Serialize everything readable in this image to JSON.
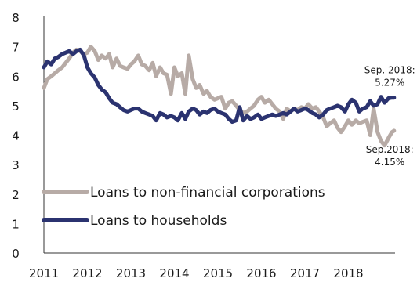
{
  "chart_data": {
    "type": "line",
    "x_axis": {
      "ticks": [
        "2011",
        "2012",
        "2013",
        "2014",
        "2015",
        "2016",
        "2017",
        "2018"
      ],
      "range": [
        2011,
        2019
      ]
    },
    "y_axis": {
      "ticks": [
        "0",
        "1",
        "2",
        "3",
        "4",
        "5",
        "6",
        "7",
        "8"
      ],
      "range": [
        0,
        8
      ]
    },
    "grid": false,
    "legend": {
      "placement": "bottom-left"
    },
    "series": [
      {
        "name": "Loans to non-financial corporations",
        "color": "#b7aba6",
        "points": [
          [
            2011.0,
            5.6
          ],
          [
            2011.08,
            5.9
          ],
          [
            2011.17,
            6.0
          ],
          [
            2011.25,
            6.1
          ],
          [
            2011.33,
            6.2
          ],
          [
            2011.42,
            6.3
          ],
          [
            2011.5,
            6.45
          ],
          [
            2011.58,
            6.6
          ],
          [
            2011.67,
            6.8
          ],
          [
            2011.75,
            6.9
          ],
          [
            2011.83,
            6.85
          ],
          [
            2011.92,
            6.75
          ],
          [
            2012.0,
            6.8
          ],
          [
            2012.08,
            7.0
          ],
          [
            2012.17,
            6.85
          ],
          [
            2012.25,
            6.55
          ],
          [
            2012.33,
            6.7
          ],
          [
            2012.42,
            6.6
          ],
          [
            2012.5,
            6.75
          ],
          [
            2012.58,
            6.3
          ],
          [
            2012.67,
            6.6
          ],
          [
            2012.75,
            6.35
          ],
          [
            2012.83,
            6.3
          ],
          [
            2012.92,
            6.25
          ],
          [
            2013.0,
            6.4
          ],
          [
            2013.08,
            6.5
          ],
          [
            2013.17,
            6.7
          ],
          [
            2013.25,
            6.4
          ],
          [
            2013.33,
            6.35
          ],
          [
            2013.42,
            6.2
          ],
          [
            2013.5,
            6.45
          ],
          [
            2013.58,
            6.0
          ],
          [
            2013.67,
            6.3
          ],
          [
            2013.75,
            6.1
          ],
          [
            2013.83,
            6.05
          ],
          [
            2013.92,
            5.4
          ],
          [
            2014.0,
            6.3
          ],
          [
            2014.08,
            6.0
          ],
          [
            2014.17,
            6.1
          ],
          [
            2014.25,
            5.4
          ],
          [
            2014.33,
            6.7
          ],
          [
            2014.42,
            5.9
          ],
          [
            2014.5,
            5.6
          ],
          [
            2014.58,
            5.7
          ],
          [
            2014.67,
            5.4
          ],
          [
            2014.75,
            5.5
          ],
          [
            2014.83,
            5.3
          ],
          [
            2014.92,
            5.2
          ],
          [
            2015.0,
            5.25
          ],
          [
            2015.08,
            5.3
          ],
          [
            2015.17,
            4.9
          ],
          [
            2015.25,
            5.1
          ],
          [
            2015.33,
            5.15
          ],
          [
            2015.42,
            5.0
          ],
          [
            2015.5,
            4.85
          ],
          [
            2015.58,
            4.75
          ],
          [
            2015.67,
            4.8
          ],
          [
            2015.75,
            4.9
          ],
          [
            2015.83,
            5.0
          ],
          [
            2015.92,
            5.2
          ],
          [
            2016.0,
            5.3
          ],
          [
            2016.08,
            5.1
          ],
          [
            2016.17,
            5.2
          ],
          [
            2016.25,
            5.05
          ],
          [
            2016.33,
            4.9
          ],
          [
            2016.42,
            4.8
          ],
          [
            2016.5,
            4.55
          ],
          [
            2016.58,
            4.9
          ],
          [
            2016.67,
            4.8
          ],
          [
            2016.75,
            4.9
          ],
          [
            2016.83,
            4.85
          ],
          [
            2016.92,
            4.95
          ],
          [
            2017.0,
            4.9
          ],
          [
            2017.08,
            5.05
          ],
          [
            2017.17,
            4.9
          ],
          [
            2017.25,
            4.95
          ],
          [
            2017.33,
            4.8
          ],
          [
            2017.42,
            4.6
          ],
          [
            2017.5,
            4.3
          ],
          [
            2017.58,
            4.4
          ],
          [
            2017.67,
            4.5
          ],
          [
            2017.75,
            4.25
          ],
          [
            2017.83,
            4.1
          ],
          [
            2017.92,
            4.3
          ],
          [
            2018.0,
            4.5
          ],
          [
            2018.08,
            4.35
          ],
          [
            2018.17,
            4.5
          ],
          [
            2018.25,
            4.4
          ],
          [
            2018.33,
            4.45
          ],
          [
            2018.42,
            4.5
          ],
          [
            2018.5,
            4.0
          ],
          [
            2018.58,
            4.9
          ],
          [
            2018.67,
            4.1
          ],
          [
            2018.75,
            3.8
          ],
          [
            2018.83,
            3.65
          ],
          [
            2018.92,
            3.9
          ],
          [
            2019.0,
            4.1
          ],
          [
            2019.05,
            4.15
          ]
        ]
      },
      {
        "name": "Loans to households",
        "color": "#2b3370",
        "points": [
          [
            2011.0,
            6.3
          ],
          [
            2011.08,
            6.5
          ],
          [
            2011.17,
            6.4
          ],
          [
            2011.25,
            6.6
          ],
          [
            2011.33,
            6.65
          ],
          [
            2011.42,
            6.75
          ],
          [
            2011.5,
            6.8
          ],
          [
            2011.58,
            6.85
          ],
          [
            2011.67,
            6.75
          ],
          [
            2011.75,
            6.85
          ],
          [
            2011.83,
            6.9
          ],
          [
            2011.92,
            6.7
          ],
          [
            2012.0,
            6.3
          ],
          [
            2012.08,
            6.1
          ],
          [
            2012.17,
            5.95
          ],
          [
            2012.25,
            5.7
          ],
          [
            2012.33,
            5.55
          ],
          [
            2012.42,
            5.45
          ],
          [
            2012.5,
            5.25
          ],
          [
            2012.58,
            5.1
          ],
          [
            2012.67,
            5.05
          ],
          [
            2012.75,
            4.95
          ],
          [
            2012.83,
            4.85
          ],
          [
            2012.92,
            4.8
          ],
          [
            2013.0,
            4.85
          ],
          [
            2013.08,
            4.9
          ],
          [
            2013.17,
            4.9
          ],
          [
            2013.25,
            4.8
          ],
          [
            2013.33,
            4.75
          ],
          [
            2013.42,
            4.7
          ],
          [
            2013.5,
            4.65
          ],
          [
            2013.58,
            4.5
          ],
          [
            2013.67,
            4.75
          ],
          [
            2013.75,
            4.7
          ],
          [
            2013.83,
            4.6
          ],
          [
            2013.92,
            4.65
          ],
          [
            2014.0,
            4.6
          ],
          [
            2014.08,
            4.5
          ],
          [
            2014.17,
            4.75
          ],
          [
            2014.25,
            4.55
          ],
          [
            2014.33,
            4.8
          ],
          [
            2014.42,
            4.9
          ],
          [
            2014.5,
            4.85
          ],
          [
            2014.58,
            4.7
          ],
          [
            2014.67,
            4.8
          ],
          [
            2014.75,
            4.75
          ],
          [
            2014.83,
            4.85
          ],
          [
            2014.92,
            4.9
          ],
          [
            2015.0,
            4.8
          ],
          [
            2015.08,
            4.75
          ],
          [
            2015.17,
            4.7
          ],
          [
            2015.25,
            4.55
          ],
          [
            2015.33,
            4.45
          ],
          [
            2015.42,
            4.5
          ],
          [
            2015.5,
            4.95
          ],
          [
            2015.58,
            4.5
          ],
          [
            2015.67,
            4.65
          ],
          [
            2015.75,
            4.55
          ],
          [
            2015.83,
            4.6
          ],
          [
            2015.92,
            4.7
          ],
          [
            2016.0,
            4.55
          ],
          [
            2016.08,
            4.6
          ],
          [
            2016.17,
            4.65
          ],
          [
            2016.25,
            4.7
          ],
          [
            2016.33,
            4.65
          ],
          [
            2016.42,
            4.7
          ],
          [
            2016.5,
            4.75
          ],
          [
            2016.58,
            4.7
          ],
          [
            2016.67,
            4.8
          ],
          [
            2016.75,
            4.9
          ],
          [
            2016.83,
            4.8
          ],
          [
            2016.92,
            4.85
          ],
          [
            2017.0,
            4.9
          ],
          [
            2017.08,
            4.85
          ],
          [
            2017.17,
            4.75
          ],
          [
            2017.25,
            4.7
          ],
          [
            2017.33,
            4.6
          ],
          [
            2017.42,
            4.7
          ],
          [
            2017.5,
            4.85
          ],
          [
            2017.58,
            4.9
          ],
          [
            2017.67,
            4.95
          ],
          [
            2017.75,
            5.0
          ],
          [
            2017.83,
            4.95
          ],
          [
            2017.92,
            4.8
          ],
          [
            2018.0,
            5.05
          ],
          [
            2018.08,
            5.2
          ],
          [
            2018.17,
            5.1
          ],
          [
            2018.25,
            4.8
          ],
          [
            2018.33,
            4.9
          ],
          [
            2018.42,
            4.95
          ],
          [
            2018.5,
            5.15
          ],
          [
            2018.58,
            5.0
          ],
          [
            2018.67,
            5.05
          ],
          [
            2018.75,
            5.3
          ],
          [
            2018.83,
            5.1
          ],
          [
            2018.92,
            5.25
          ],
          [
            2019.0,
            5.27
          ],
          [
            2019.05,
            5.27
          ]
        ]
      }
    ],
    "annotations": [
      {
        "lines": [
          "Sep. 2018:",
          "5.27%"
        ],
        "x": 2018.95,
        "y": 6.1
      },
      {
        "lines": [
          "Sep.2018:",
          "4.15%"
        ],
        "x": 2018.95,
        "y": 3.4
      }
    ]
  }
}
